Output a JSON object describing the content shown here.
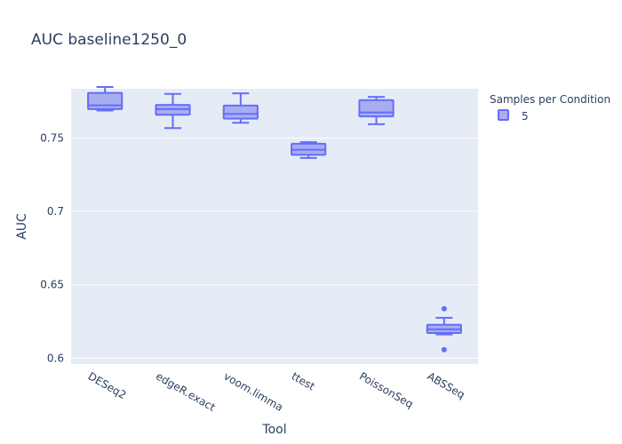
{
  "chart_data": {
    "type": "box",
    "title": "AUC baseline1250_0",
    "xlabel": "Tool",
    "ylabel": "AUC",
    "categories": [
      "DESeq2",
      "edgeR.exact",
      "voom.limma",
      "ttest",
      "PoissonSeq",
      "ABSSeq"
    ],
    "ylim": [
      0.596,
      0.7835
    ],
    "yticks": [
      0.6,
      0.65,
      0.7,
      0.75
    ],
    "ytick_labels": [
      "0.6",
      "0.65",
      "0.7",
      "0.75"
    ],
    "grid": true,
    "legend": {
      "title": "Samples per Condition",
      "placement": "top-right",
      "entries": [
        "5"
      ]
    },
    "series": [
      {
        "name": "5",
        "color": "#636efa",
        "fill": "#a9adf0",
        "boxes": [
          {
            "category": "DESeq2",
            "min": 0.7687,
            "q1": 0.7697,
            "median": 0.7722,
            "q3": 0.7807,
            "max": 0.7847,
            "outliers": []
          },
          {
            "category": "edgeR.exact",
            "min": 0.7567,
            "q1": 0.7658,
            "median": 0.7697,
            "q3": 0.7725,
            "max": 0.78,
            "outliers": []
          },
          {
            "category": "voom.limma",
            "min": 0.7604,
            "q1": 0.7632,
            "median": 0.7664,
            "q3": 0.7721,
            "max": 0.7804,
            "outliers": []
          },
          {
            "category": "ttest",
            "min": 0.7364,
            "q1": 0.7385,
            "median": 0.742,
            "q3": 0.7461,
            "max": 0.7471,
            "outliers": []
          },
          {
            "category": "PoissonSeq",
            "min": 0.7594,
            "q1": 0.7647,
            "median": 0.7674,
            "q3": 0.7758,
            "max": 0.778,
            "outliers": []
          },
          {
            "category": "ABSSeq",
            "min": 0.6162,
            "q1": 0.6172,
            "median": 0.6197,
            "q3": 0.6228,
            "max": 0.6275,
            "outliers": [
              0.6337,
              0.6058
            ]
          }
        ]
      }
    ]
  }
}
